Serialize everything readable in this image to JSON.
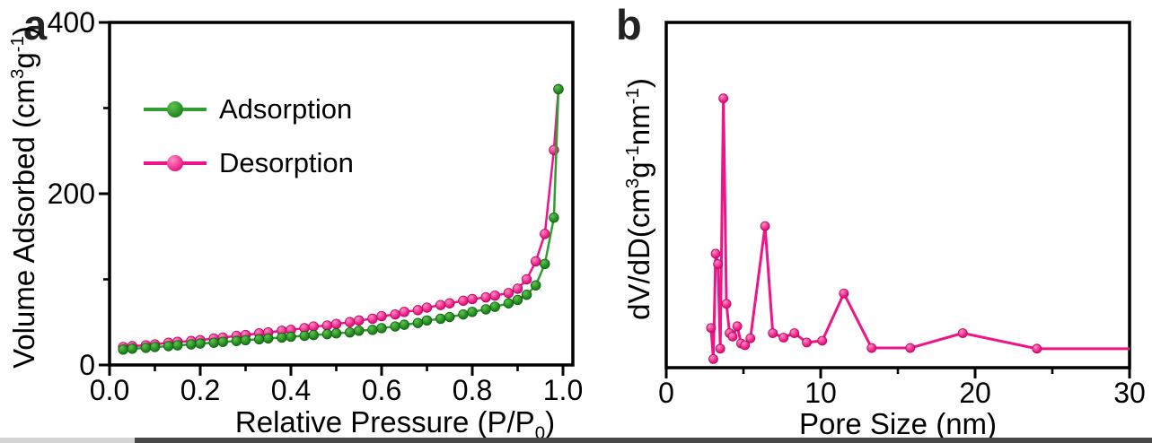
{
  "figure": {
    "background": "#ffffff",
    "description": "Two-panel nitrogen sorption figure: (a) adsorption-desorption isotherm, (b) pore size distribution"
  },
  "chart_data": [
    {
      "id": "a",
      "panel_letter": "a",
      "type": "line",
      "title": "",
      "xlabel": "Relative Pressure (P/P_{0})",
      "ylabel": "Volume Adsorbed (cm^{3}g^{-1})",
      "xlim": [
        0,
        1.022
      ],
      "ylim": [
        0,
        400
      ],
      "grid": false,
      "x_major_ticks": [
        0.0,
        0.2,
        0.4,
        0.6,
        0.8,
        1.0
      ],
      "x_tick_labels": [
        "0.0",
        "0.2",
        "0.4",
        "0.6",
        "0.8",
        "1.0"
      ],
      "x_minor_ticks": [
        0.1,
        0.3,
        0.5,
        0.7,
        0.9
      ],
      "y_major_ticks": [
        0,
        200,
        400
      ],
      "y_tick_labels": [
        "0",
        "200",
        "400"
      ],
      "y_minor_ticks": [
        100,
        300
      ],
      "legend_position": "inside upper-left",
      "series": [
        {
          "name": "Desorption",
          "line_color": "#ed1588",
          "marker_color": "#e9117e",
          "marker_highlight": "#ff8fc7",
          "marker_edge": "#b50560",
          "x": [
            0.03,
            0.05,
            0.08,
            0.1,
            0.13,
            0.15,
            0.18,
            0.2,
            0.23,
            0.25,
            0.28,
            0.3,
            0.33,
            0.35,
            0.38,
            0.4,
            0.43,
            0.45,
            0.48,
            0.5,
            0.53,
            0.55,
            0.58,
            0.6,
            0.63,
            0.65,
            0.68,
            0.7,
            0.73,
            0.75,
            0.78,
            0.8,
            0.83,
            0.85,
            0.88,
            0.9,
            0.92,
            0.94,
            0.96,
            0.98,
            0.99
          ],
          "y": [
            21,
            22,
            23,
            24,
            26,
            27,
            28,
            29,
            31,
            32,
            34,
            35,
            37,
            38,
            40,
            41,
            43,
            45,
            46,
            48,
            50,
            52,
            54,
            57,
            59,
            62,
            64,
            67,
            70,
            72,
            75,
            77,
            79,
            81,
            84,
            89,
            100,
            121,
            153,
            251,
            322
          ]
        },
        {
          "name": "Adsorption",
          "line_color": "#2f9e2f",
          "marker_color": "#1b821b",
          "marker_highlight": "#5fc44f",
          "marker_edge": "#0d5e10",
          "x": [
            0.03,
            0.05,
            0.08,
            0.1,
            0.13,
            0.15,
            0.18,
            0.2,
            0.23,
            0.25,
            0.28,
            0.3,
            0.33,
            0.35,
            0.38,
            0.4,
            0.43,
            0.45,
            0.48,
            0.5,
            0.53,
            0.55,
            0.58,
            0.6,
            0.63,
            0.65,
            0.68,
            0.7,
            0.73,
            0.75,
            0.78,
            0.8,
            0.83,
            0.85,
            0.88,
            0.9,
            0.92,
            0.94,
            0.96,
            0.98,
            0.99
          ],
          "y": [
            18,
            19,
            20,
            21,
            22,
            23,
            24,
            25,
            26,
            27,
            28,
            29,
            30,
            31,
            32,
            33,
            34,
            35,
            36,
            37,
            38,
            40,
            41,
            43,
            45,
            47,
            49,
            52,
            54,
            56,
            59,
            62,
            65,
            68,
            72,
            76,
            82,
            93,
            118,
            172,
            322
          ]
        }
      ],
      "legend_items": [
        {
          "label": "Adsorption",
          "line_color": "#2f9e2f",
          "marker_color": "#1b821b",
          "marker_highlight": "#5fc44f"
        },
        {
          "label": "Desorption",
          "line_color": "#ed1588",
          "marker_color": "#e9117e",
          "marker_highlight": "#ff8fc7"
        }
      ]
    },
    {
      "id": "b",
      "panel_letter": "b",
      "type": "line",
      "title": "",
      "xlabel": "Pore Size (nm)",
      "ylabel": "dV/dD(cm^{3}g^{-1}nm^{-1})",
      "xlim": [
        0,
        30
      ],
      "ylim": [
        0,
        1
      ],
      "grid": false,
      "x_major_ticks": [
        0,
        10,
        20,
        30
      ],
      "x_tick_labels": [
        "0",
        "10",
        "20",
        "30"
      ],
      "x_minor_ticks": [
        5,
        15,
        25
      ],
      "y_major_ticks": [],
      "y_tick_labels": [],
      "y_minor_ticks": [],
      "y_units": "relative (no tick labels shown)",
      "series": [
        {
          "name": "dV/dD",
          "line_color": "#ed1588",
          "marker_color": "#e9117e",
          "marker_highlight": "#ff8fc7",
          "marker_edge": "#b50560",
          "last_point_marker": false,
          "x": [
            2.9,
            3.05,
            3.2,
            3.35,
            3.5,
            3.7,
            3.9,
            4.1,
            4.3,
            4.6,
            4.85,
            5.1,
            5.45,
            6.4,
            6.9,
            7.6,
            8.3,
            9.1,
            10.1,
            11.5,
            13.3,
            15.8,
            19.2,
            24.0,
            30.0
          ],
          "y": [
            0.115,
            0.025,
            0.33,
            0.3,
            0.055,
            0.78,
            0.185,
            0.1,
            0.09,
            0.12,
            0.07,
            0.065,
            0.085,
            0.41,
            0.1,
            0.087,
            0.1,
            0.073,
            0.078,
            0.215,
            0.057,
            0.057,
            0.1,
            0.055,
            0.055
          ]
        }
      ]
    }
  ]
}
